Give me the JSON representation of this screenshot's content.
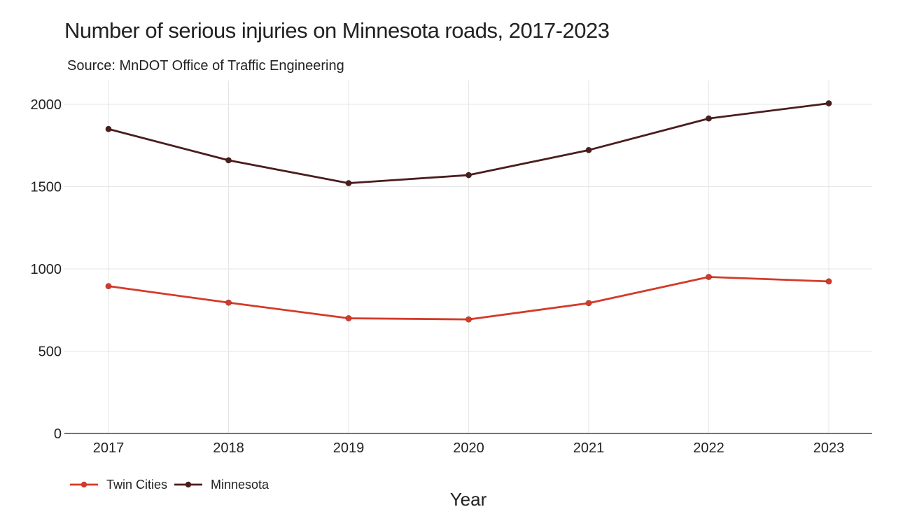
{
  "chart_data": {
    "type": "line",
    "title": "Number of serious injuries on Minnesota roads, 2017-2023",
    "subtitle": "Source: MnDOT Office of Traffic Engineering",
    "xlabel": "Year",
    "ylabel": "",
    "x": [
      "2017",
      "2018",
      "2019",
      "2020",
      "2021",
      "2022",
      "2023"
    ],
    "ylim": [
      0,
      2150
    ],
    "yticks": [
      0,
      500,
      1000,
      1500,
      2000
    ],
    "grid": true,
    "legend_position": "bottom-left",
    "series": [
      {
        "name": "Twin Cities",
        "color": "#d43a2a",
        "values": [
          895,
          795,
          700,
          693,
          792,
          951,
          924
        ]
      },
      {
        "name": "Minnesota",
        "color": "#4a1e1c",
        "values": [
          1850,
          1660,
          1521,
          1570,
          1722,
          1914,
          2006
        ]
      }
    ]
  }
}
